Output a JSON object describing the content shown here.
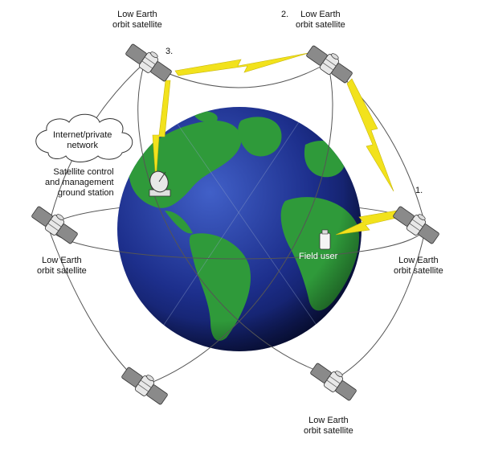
{
  "satellite_label_line1": "Low Earth",
  "satellite_label_line2": "orbit satellite",
  "numbers": {
    "sat1": "1.",
    "sat2": "2.",
    "sat3": "3."
  },
  "cloud": {
    "line1": "Internet/private",
    "line2": "network"
  },
  "ground_station": {
    "line1": "Satellite control",
    "line2": "and management",
    "line3": "ground station"
  },
  "field_user": "Field user",
  "colors": {
    "ocean": "#1b2f8a",
    "land": "#2f9a3a",
    "link": "#f2e21c",
    "orbit": "#555555"
  }
}
